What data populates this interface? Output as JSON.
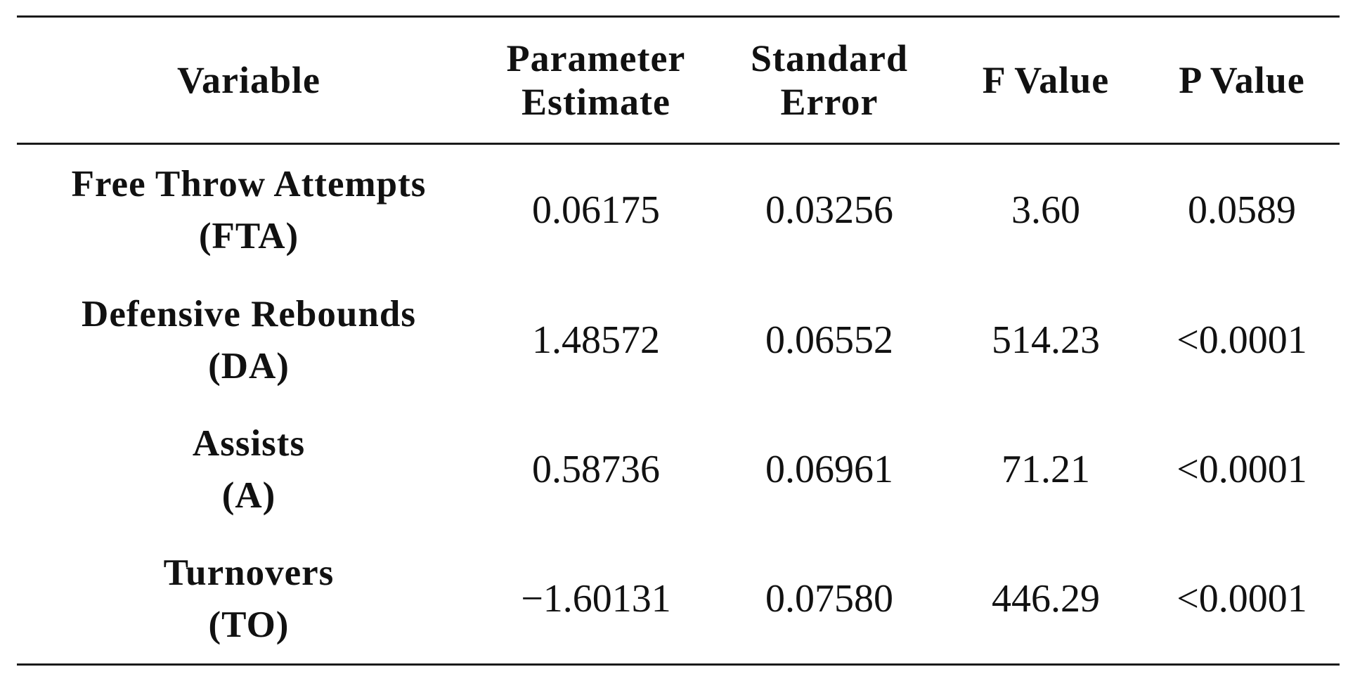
{
  "table": {
    "headers": [
      {
        "line1": "Variable",
        "line2": ""
      },
      {
        "line1": "Parameter",
        "line2": "Estimate"
      },
      {
        "line1": "Standard",
        "line2": "Error"
      },
      {
        "line1": "F Value",
        "line2": ""
      },
      {
        "line1": "P Value",
        "line2": ""
      }
    ],
    "rows": [
      {
        "variable": "Free Throw Attempts",
        "abbr": "(FTA)",
        "estimate": "0.06175",
        "std_error": "0.03256",
        "f_value": "3.60",
        "p_value": "0.0589"
      },
      {
        "variable": "Defensive Rebounds",
        "abbr": "(DA)",
        "estimate": "1.48572",
        "std_error": "0.06552",
        "f_value": "514.23",
        "p_value": "<0.0001"
      },
      {
        "variable": "Assists",
        "abbr": "(A)",
        "estimate": "0.58736",
        "std_error": "0.06961",
        "f_value": "71.21",
        "p_value": "<0.0001"
      },
      {
        "variable": "Turnovers",
        "abbr": "(TO)",
        "estimate": "−1.60131",
        "std_error": "0.07580",
        "f_value": "446.29",
        "p_value": "<0.0001"
      }
    ]
  }
}
